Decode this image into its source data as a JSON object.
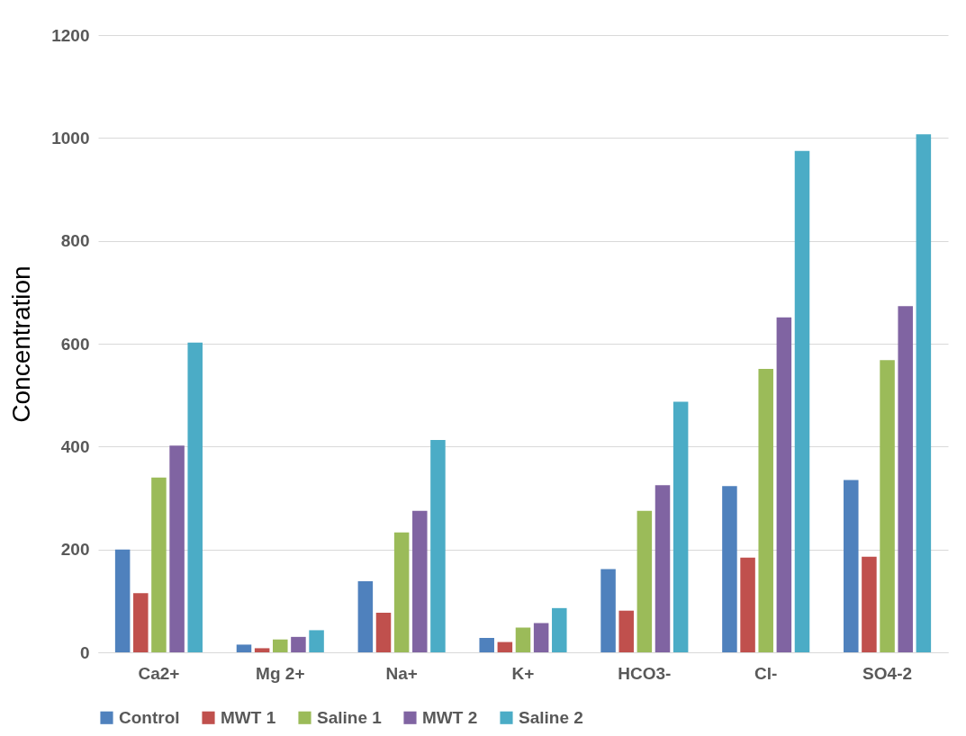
{
  "chart_data": {
    "type": "bar",
    "ylabel": "Concentration",
    "categories": [
      "Ca2+",
      "Mg 2+",
      "Na+",
      "K+",
      "HCO3-",
      "Cl-",
      "SO4-2"
    ],
    "series": [
      {
        "name": "Control",
        "color": "#4f81bd",
        "values": [
          200,
          15,
          138,
          28,
          162,
          323,
          335
        ]
      },
      {
        "name": "MWT 1",
        "color": "#c0504d",
        "values": [
          115,
          8,
          77,
          20,
          81,
          184,
          186
        ]
      },
      {
        "name": "Saline 1",
        "color": "#9bbb59",
        "values": [
          340,
          25,
          233,
          48,
          275,
          551,
          568
        ]
      },
      {
        "name": "MWT 2",
        "color": "#8064a2",
        "values": [
          402,
          30,
          275,
          57,
          325,
          651,
          673
        ]
      },
      {
        "name": "Saline 2",
        "color": "#4bacc6",
        "values": [
          602,
          43,
          413,
          86,
          487,
          975,
          1007
        ]
      }
    ],
    "ylim": [
      0,
      1200
    ],
    "yticks": [
      0,
      200,
      400,
      600,
      800,
      1000,
      1200
    ],
    "grid": "y",
    "legend": "bottom"
  }
}
